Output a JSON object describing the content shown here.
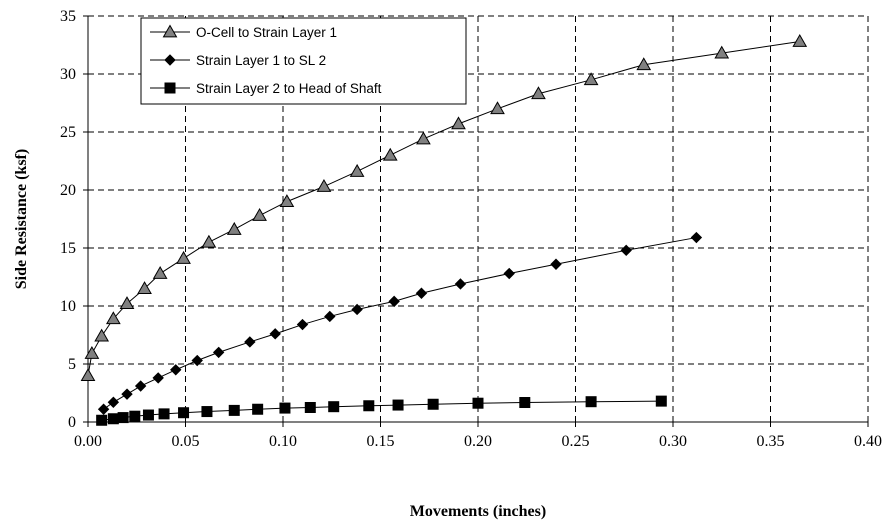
{
  "chart_data": {
    "type": "line",
    "xlabel": "Movements (inches)",
    "ylabel": "Side Resistance (ksf)",
    "xlim": [
      0,
      0.4
    ],
    "ylim": [
      0,
      35
    ],
    "x_ticks": [
      "0.00",
      "0.05",
      "0.10",
      "0.15",
      "0.20",
      "0.25",
      "0.30",
      "0.35",
      "0.40"
    ],
    "y_ticks": [
      "0",
      "5",
      "10",
      "15",
      "20",
      "25",
      "30",
      "35"
    ],
    "x_tick_values": [
      0,
      0.05,
      0.1,
      0.15,
      0.2,
      0.25,
      0.3,
      0.35,
      0.4
    ],
    "y_tick_values": [
      0,
      5,
      10,
      15,
      20,
      25,
      30,
      35
    ],
    "grid": true,
    "legend_position": "top-left",
    "series": [
      {
        "name": "O-Cell to Strain Layer 1",
        "marker": "triangle",
        "points": [
          [
            0.0,
            4.0
          ],
          [
            0.002,
            5.9
          ],
          [
            0.007,
            7.4
          ],
          [
            0.013,
            8.9
          ],
          [
            0.02,
            10.2
          ],
          [
            0.029,
            11.5
          ],
          [
            0.037,
            12.8
          ],
          [
            0.049,
            14.1
          ],
          [
            0.062,
            15.5
          ],
          [
            0.075,
            16.6
          ],
          [
            0.088,
            17.8
          ],
          [
            0.102,
            19.0
          ],
          [
            0.121,
            20.3
          ],
          [
            0.138,
            21.6
          ],
          [
            0.155,
            23.0
          ],
          [
            0.172,
            24.4
          ],
          [
            0.19,
            25.7
          ],
          [
            0.21,
            27.0
          ],
          [
            0.231,
            28.3
          ],
          [
            0.258,
            29.5
          ],
          [
            0.285,
            30.8
          ],
          [
            0.325,
            31.8
          ],
          [
            0.365,
            32.8
          ]
        ]
      },
      {
        "name": "Strain Layer 1 to SL 2",
        "marker": "diamond",
        "points": [
          [
            0.008,
            1.1
          ],
          [
            0.013,
            1.7
          ],
          [
            0.02,
            2.4
          ],
          [
            0.027,
            3.1
          ],
          [
            0.036,
            3.8
          ],
          [
            0.045,
            4.5
          ],
          [
            0.056,
            5.3
          ],
          [
            0.067,
            6.0
          ],
          [
            0.083,
            6.9
          ],
          [
            0.096,
            7.6
          ],
          [
            0.11,
            8.4
          ],
          [
            0.124,
            9.1
          ],
          [
            0.138,
            9.7
          ],
          [
            0.157,
            10.4
          ],
          [
            0.171,
            11.1
          ],
          [
            0.191,
            11.9
          ],
          [
            0.216,
            12.8
          ],
          [
            0.24,
            13.6
          ],
          [
            0.276,
            14.8
          ],
          [
            0.312,
            15.9
          ]
        ]
      },
      {
        "name": "Strain Layer 2 to Head of  Shaft",
        "marker": "square",
        "points": [
          [
            0.007,
            0.15
          ],
          [
            0.013,
            0.28
          ],
          [
            0.018,
            0.38
          ],
          [
            0.024,
            0.5
          ],
          [
            0.031,
            0.6
          ],
          [
            0.039,
            0.7
          ],
          [
            0.049,
            0.8
          ],
          [
            0.061,
            0.9
          ],
          [
            0.075,
            1.0
          ],
          [
            0.087,
            1.1
          ],
          [
            0.101,
            1.2
          ],
          [
            0.114,
            1.25
          ],
          [
            0.126,
            1.32
          ],
          [
            0.144,
            1.4
          ],
          [
            0.159,
            1.46
          ],
          [
            0.177,
            1.53
          ],
          [
            0.2,
            1.62
          ],
          [
            0.224,
            1.68
          ],
          [
            0.258,
            1.75
          ],
          [
            0.294,
            1.8
          ]
        ]
      }
    ]
  }
}
